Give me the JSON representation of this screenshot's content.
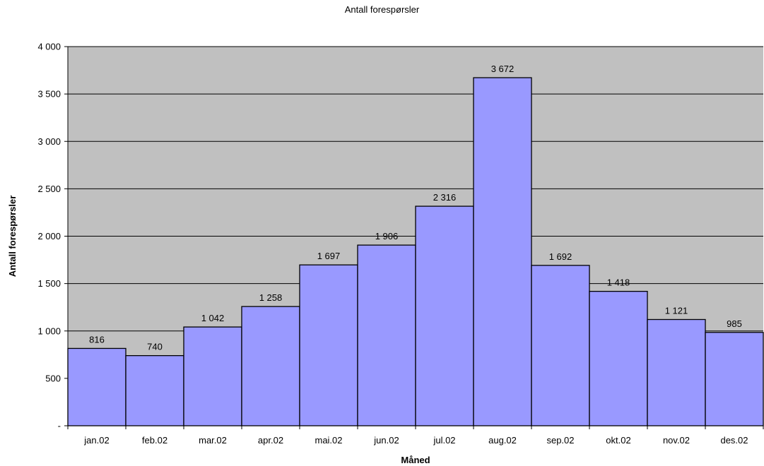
{
  "chart_data": {
    "type": "bar",
    "title": "Antall forespørsler",
    "xlabel": "Måned",
    "ylabel": "Antall forespørsler",
    "categories": [
      "jan.02",
      "feb.02",
      "mar.02",
      "apr.02",
      "mai.02",
      "jun.02",
      "jul.02",
      "aug.02",
      "sep.02",
      "okt.02",
      "nov.02",
      "des.02"
    ],
    "values": [
      816,
      740,
      1042,
      1258,
      1697,
      1906,
      2316,
      3672,
      1692,
      1418,
      1121,
      985
    ],
    "value_labels": [
      "816",
      "740",
      "1 042",
      "1 258",
      "1 697",
      "1 906",
      "2 316",
      "3 672",
      "1 692",
      "1 418",
      "1 121",
      "985"
    ],
    "ylim": [
      0,
      4000
    ],
    "yticks": [
      0,
      500,
      1000,
      1500,
      2000,
      2500,
      3000,
      3500,
      4000
    ],
    "ytick_labels": [
      "-",
      "500",
      "1 000",
      "1 500",
      "2 000",
      "2 500",
      "3 000",
      "3 500",
      "4 000"
    ],
    "grid": true,
    "legend": "none",
    "colors": {
      "plot_background": "#c0c0c0",
      "bar_fill": "#9999ff",
      "bar_stroke": "#000000",
      "grid": "#000000"
    }
  }
}
